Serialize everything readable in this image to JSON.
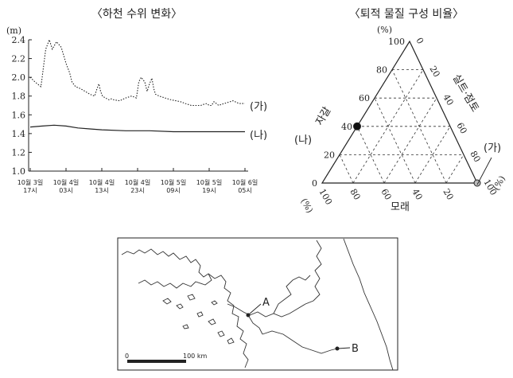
{
  "chart_data": [
    {
      "type": "line",
      "title": "〈하천 수위 변화〉",
      "ylabel": "(m)",
      "ylim": [
        1.0,
        2.4
      ],
      "yticks": [
        "1.0",
        "1.2",
        "1.4",
        "1.6",
        "1.8",
        "2.0",
        "2.2",
        "2.4"
      ],
      "x_ticks": [
        {
          "date": "10월 3일",
          "time": "17시"
        },
        {
          "date": "10월 4일",
          "time": "03시"
        },
        {
          "date": "10월 4일",
          "time": "13시"
        },
        {
          "date": "10월 4일",
          "time": "23시"
        },
        {
          "date": "10월 5일",
          "time": "09시"
        },
        {
          "date": "10월 5일",
          "time": "19시"
        },
        {
          "date": "10월 6일",
          "time": "05시"
        }
      ],
      "series": [
        {
          "name": "(가)",
          "style": "dotted",
          "x": [
            0,
            0.4,
            0.9,
            1.3,
            1.6,
            1.85,
            2.2,
            2.6,
            3.0,
            3.3,
            3.5,
            3.8,
            4.2,
            4.6,
            5.0,
            5.4,
            5.6,
            5.75,
            5.9,
            6.05,
            6.3,
            6.6,
            6.8,
            7.0,
            7.5,
            8.0,
            8.5,
            8.9,
            9.1,
            9.3,
            9.6,
            9.8,
            10.0,
            10.2,
            10.35,
            10.5,
            10.8,
            11.3,
            11.8,
            12.2,
            12.6,
            13.0,
            13.5,
            14.0,
            14.3,
            14.5,
            14.8,
            15.0,
            15.2,
            15.4,
            15.6,
            15.8,
            16.0,
            16.5,
            17.0,
            17.5,
            18.0
          ],
          "values": [
            2.0,
            1.95,
            1.9,
            2.3,
            2.4,
            2.3,
            2.38,
            2.32,
            2.15,
            2.05,
            1.95,
            1.9,
            1.88,
            1.85,
            1.82,
            1.8,
            1.88,
            1.93,
            1.85,
            1.8,
            1.78,
            1.76,
            1.77,
            1.76,
            1.75,
            1.78,
            1.8,
            1.78,
            1.95,
            2.0,
            1.95,
            1.85,
            1.93,
            1.99,
            1.88,
            1.82,
            1.8,
            1.78,
            1.76,
            1.75,
            1.74,
            1.72,
            1.7,
            1.7,
            1.7,
            1.71,
            1.72,
            1.7,
            1.7,
            1.74,
            1.72,
            1.7,
            1.71,
            1.73,
            1.75,
            1.72,
            1.72
          ]
        },
        {
          "name": "(나)",
          "style": "solid",
          "x": [
            0,
            1,
            2,
            3,
            4,
            5,
            6,
            8,
            10,
            12,
            14,
            16,
            18
          ],
          "values": [
            1.47,
            1.48,
            1.49,
            1.48,
            1.46,
            1.45,
            1.44,
            1.43,
            1.43,
            1.42,
            1.42,
            1.42,
            1.42
          ]
        }
      ]
    },
    {
      "type": "ternary",
      "title": "〈퇴적 물질 구성 비율〉",
      "axes": {
        "gravel": {
          "label": "자갈",
          "unit": "(%)",
          "ticks": [
            "0",
            "20",
            "40",
            "60",
            "80",
            "100"
          ]
        },
        "silt_clay": {
          "label": "실트·점토",
          "unit": "(%)",
          "ticks": [
            "0",
            "20",
            "40",
            "60",
            "80",
            "100"
          ]
        },
        "sand": {
          "label": "모래",
          "ticks": [
            "100",
            "80",
            "60",
            "40",
            "20"
          ]
        }
      },
      "axis_units": {
        "left": "(%)",
        "right": "(%)"
      },
      "points": [
        {
          "name": "(나)",
          "gravel": 40,
          "silt_clay": 0,
          "sand": 60,
          "marker": "filled"
        },
        {
          "name": "(가)",
          "gravel": 0,
          "silt_clay": 100,
          "sand": 0,
          "marker": "hollow"
        }
      ]
    }
  ],
  "map": {
    "points": [
      {
        "label": "A"
      },
      {
        "label": "B"
      }
    ],
    "scale_zero": "0",
    "scale_label": "100 km"
  }
}
